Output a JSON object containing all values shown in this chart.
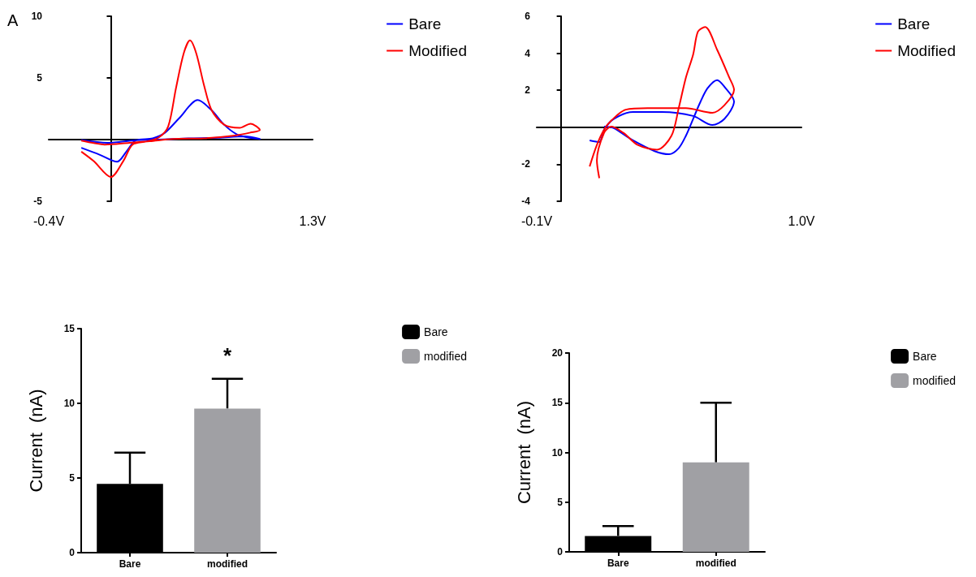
{
  "chart_data": [
    {
      "type": "line",
      "title": "A",
      "xlim": [
        -0.4,
        1.3
      ],
      "xticks": [
        {
          "value": -0.4,
          "label": "-0.4V"
        },
        {
          "value": 1.3,
          "label": "1.3V"
        }
      ],
      "ylim": [
        -5,
        10
      ],
      "yticks": [
        -5,
        5,
        10
      ],
      "legend": "top right",
      "marker": "none",
      "series": [
        {
          "name": "Bare",
          "color": "#0000ff",
          "x": [
            -0.19,
            -0.07,
            0.04,
            0.1,
            0.16,
            0.27,
            0.35,
            0.44,
            0.56,
            0.65,
            0.73,
            0.81,
            0.88,
            0.96,
            0.86,
            0.69,
            0.5,
            0.31,
            0.16,
            -0.02,
            -0.19
          ],
          "values": [
            -0.67,
            -1.24,
            -1.8,
            -0.98,
            -0.08,
            0.1,
            0.57,
            1.73,
            3.2,
            2.37,
            1.21,
            0.44,
            0.18,
            0.05,
            0.26,
            0.15,
            0.1,
            0,
            -0.05,
            -0.26,
            -0.03
          ]
        },
        {
          "name": "Modified",
          "color": "#ff0000",
          "x": [
            -0.19,
            -0.11,
            0,
            0.08,
            0.14,
            0.23,
            0.31,
            0.37,
            0.42,
            0.47,
            0.51,
            0.55,
            0.6,
            0.65,
            0.73,
            0.83,
            0.9,
            0.96,
            0.9,
            0.79,
            0.6,
            0.4,
            0.25,
            0.12,
            -0.04,
            -0.11,
            -0.19
          ],
          "values": [
            -0.98,
            -1.75,
            -3.04,
            -1.75,
            -0.41,
            -0.15,
            0.18,
            1.08,
            4.18,
            7.01,
            8.04,
            7.01,
            4.43,
            2.37,
            1.21,
            0.95,
            1.29,
            0.77,
            0.57,
            0.31,
            0.1,
            0.05,
            -0.13,
            -0.26,
            -0.41,
            -0.28,
            -0.08
          ]
        }
      ]
    },
    {
      "type": "line",
      "xlim": [
        -0.1,
        1.0
      ],
      "xticks": [
        {
          "value": -0.1,
          "label": "-0.1V"
        },
        {
          "value": 1.0,
          "label": "1.0V"
        }
      ],
      "ylim": [
        -4,
        6
      ],
      "yticks": [
        -4,
        -2,
        2,
        4,
        6
      ],
      "legend": "top right",
      "marker": "none",
      "series": [
        {
          "name": "Bare",
          "color": "#0000ff",
          "x": [
            0.12,
            0.16,
            0.18,
            0.22,
            0.3,
            0.42,
            0.55,
            0.63,
            0.68,
            0.72,
            0.68,
            0.65,
            0.61,
            0.58,
            0.55,
            0.52,
            0.49,
            0.45,
            0.39,
            0.3,
            0.22,
            0.18
          ],
          "values": [
            -0.71,
            -0.8,
            -0.13,
            0.45,
            0.83,
            0.83,
            0.61,
            0.12,
            0.45,
            1.39,
            2.19,
            2.55,
            2.11,
            1.36,
            0.45,
            -0.46,
            -1.13,
            -1.46,
            -1.29,
            -0.71,
            -0.05,
            0.03
          ]
        },
        {
          "name": "Modified",
          "color": "#ff0000",
          "x": [
            0.12,
            0.15,
            0.18,
            0.21,
            0.27,
            0.36,
            0.52,
            0.63,
            0.68,
            0.72,
            0.7,
            0.65,
            0.6,
            0.57,
            0.55,
            0.52,
            0.49,
            0.46,
            0.4,
            0.32,
            0.26,
            0.21,
            0.18,
            0.15,
            0.16
          ],
          "values": [
            -2.12,
            -0.96,
            -0.13,
            0.36,
            0.95,
            1.03,
            1.03,
            0.78,
            1.19,
            2.02,
            2.69,
            4.18,
            5.42,
            5.17,
            3.93,
            2.69,
            1.03,
            -0.46,
            -1.21,
            -0.96,
            -0.3,
            0.03,
            -0.3,
            -1.79,
            -2.75
          ]
        }
      ]
    },
    {
      "type": "bar",
      "categories": [
        "Bare",
        "modified"
      ],
      "ylabel": "Current  (nA)",
      "ylim": [
        0,
        15
      ],
      "yticks": [
        0,
        5,
        10,
        15
      ],
      "legend": "top right",
      "annotations": [
        "*"
      ],
      "series": [
        {
          "name": "Bare",
          "color": "#000000",
          "values": [
            4.6,
            null
          ],
          "errors": [
            [
              4.6,
              6.7
            ],
            null
          ]
        },
        {
          "name": "modified",
          "color": "#a0a0a4",
          "values": [
            null,
            9.65
          ],
          "errors": [
            null,
            [
              9.65,
              11.65
            ]
          ]
        }
      ]
    },
    {
      "type": "bar",
      "categories": [
        "Bare",
        "modified"
      ],
      "ylabel": "Current  (nA)",
      "ylim": [
        0,
        20
      ],
      "yticks": [
        0,
        5,
        10,
        15,
        20
      ],
      "legend": "top right",
      "series": [
        {
          "name": "Bare",
          "color": "#000000",
          "values": [
            1.6,
            null
          ],
          "errors": [
            [
              1.6,
              2.6
            ],
            null
          ]
        },
        {
          "name": "modified",
          "color": "#a0a0a4",
          "values": [
            null,
            9.0
          ],
          "errors": [
            null,
            [
              9.0,
              15.0
            ]
          ]
        }
      ]
    }
  ]
}
